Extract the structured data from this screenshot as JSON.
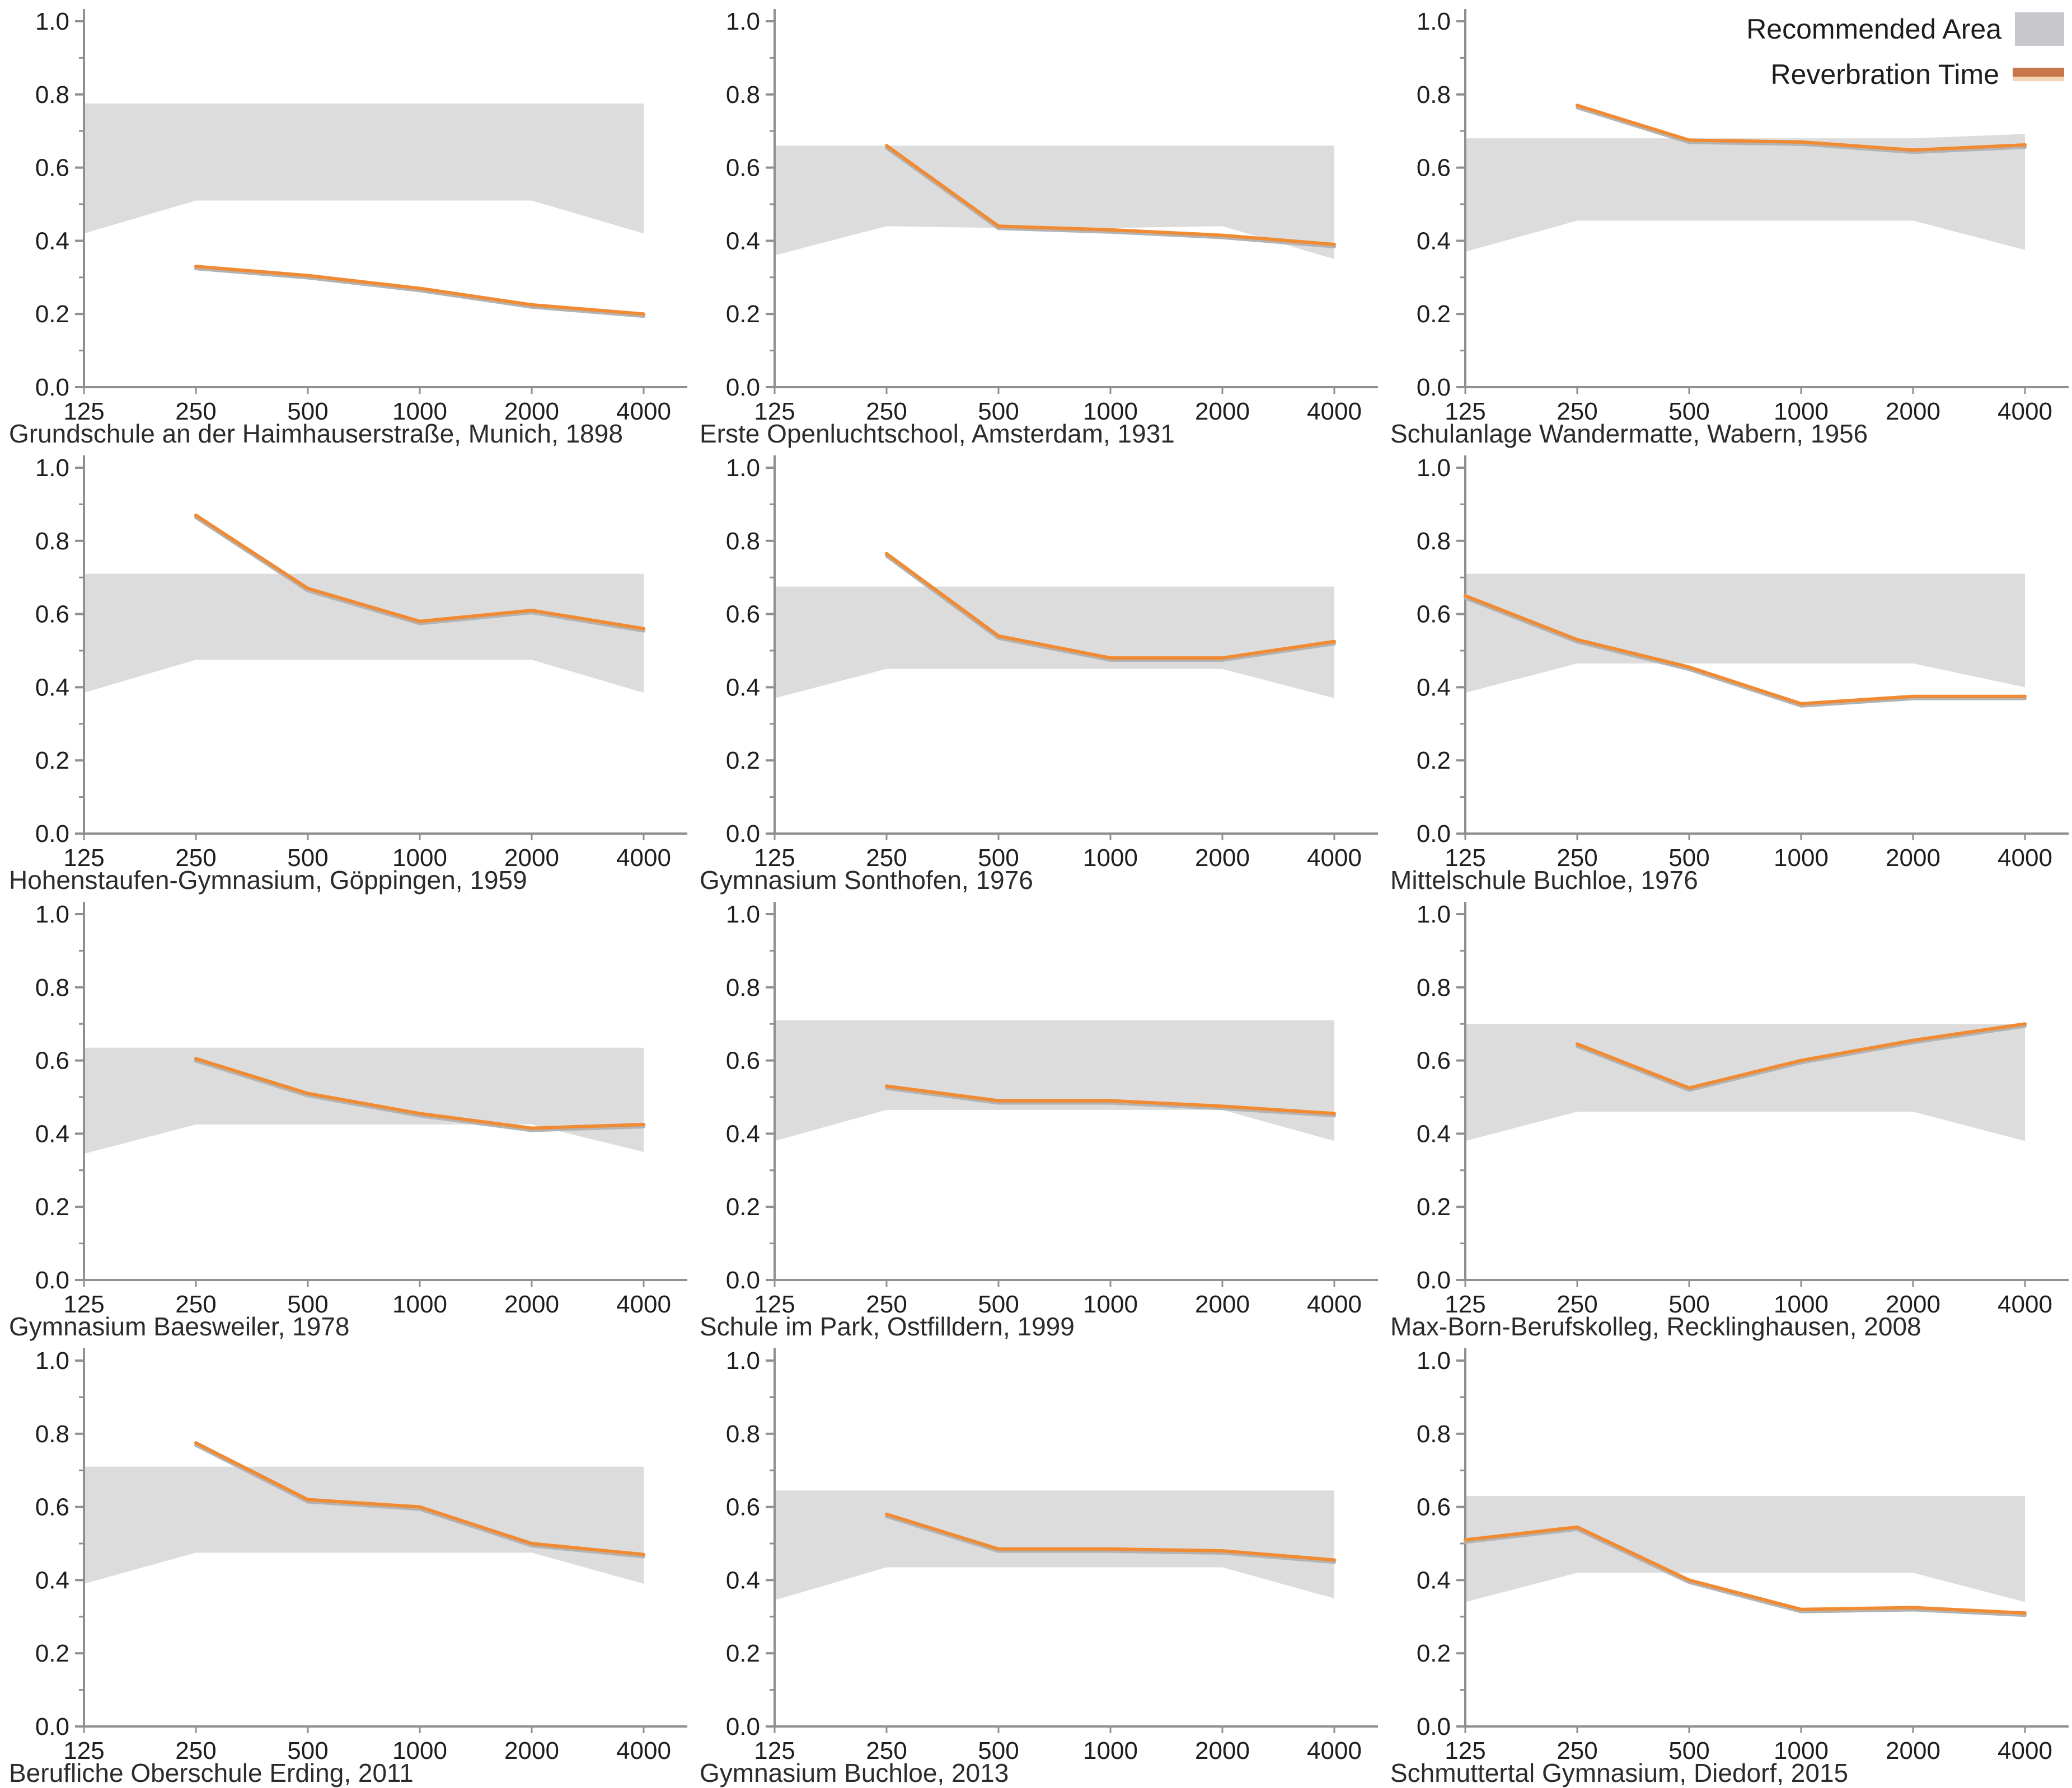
{
  "legend": {
    "recommended_area_label": "Recommended Area",
    "reverbration_time_label": "Reverbration Time"
  },
  "axes": {
    "ylim": [
      0.0,
      1.0
    ],
    "y_ticks": [
      0.0,
      0.2,
      0.4,
      0.6,
      0.8,
      1.0
    ],
    "y_minor_ticks": [
      0.1,
      0.3,
      0.5,
      0.7,
      0.9
    ],
    "x_ticks": [
      125,
      250,
      500,
      1000,
      2000,
      4000
    ],
    "x_tick_labels": [
      "125",
      "250",
      "500",
      "1000",
      "2000",
      "4000"
    ],
    "x_scale": "log2",
    "grid": "off"
  },
  "colors": {
    "band": "#dcdcdc",
    "line": "#f08a33",
    "line_shadow": "#b3b3b3",
    "legend_line": "#c8764a",
    "axis": "#8f8f8f",
    "tick_text": "#1e1e1e"
  },
  "chart_data": [
    {
      "type": "line",
      "title": "Grundschule an der Haimhauserstraße, Munich, 1898",
      "band": {
        "x": [
          125,
          250,
          500,
          1000,
          2000,
          4000
        ],
        "upper": [
          0.775,
          0.775,
          0.775,
          0.775,
          0.775,
          0.775
        ],
        "lower": [
          0.42,
          0.51,
          0.51,
          0.51,
          0.51,
          0.42
        ]
      },
      "line": {
        "x": [
          250,
          500,
          1000,
          2000,
          4000
        ],
        "y": [
          0.33,
          0.305,
          0.27,
          0.225,
          0.2
        ]
      }
    },
    {
      "type": "line",
      "title": "Erste Openluchtschool, Amsterdam, 1931",
      "band": {
        "x": [
          125,
          250,
          500,
          1000,
          2000,
          4000
        ],
        "upper": [
          0.66,
          0.66,
          0.66,
          0.66,
          0.66,
          0.66
        ],
        "lower": [
          0.36,
          0.44,
          0.435,
          0.435,
          0.44,
          0.35
        ]
      },
      "line": {
        "x": [
          250,
          500,
          1000,
          2000,
          4000
        ],
        "y": [
          0.66,
          0.44,
          0.43,
          0.415,
          0.39
        ]
      }
    },
    {
      "type": "line",
      "title": "Schulanlage Wandermatte, Wabern, 1956",
      "band": {
        "x": [
          125,
          250,
          500,
          1000,
          2000,
          4000
        ],
        "upper": [
          0.68,
          0.68,
          0.68,
          0.68,
          0.68,
          0.692
        ],
        "lower": [
          0.37,
          0.455,
          0.455,
          0.455,
          0.455,
          0.375
        ]
      },
      "line": {
        "x": [
          250,
          500,
          1000,
          2000,
          4000
        ],
        "y": [
          0.77,
          0.675,
          0.67,
          0.648,
          0.662
        ]
      }
    },
    {
      "type": "line",
      "title": "Hohenstaufen-Gymnasium, Göppingen, 1959",
      "band": {
        "x": [
          125,
          250,
          500,
          1000,
          2000,
          4000
        ],
        "upper": [
          0.71,
          0.71,
          0.71,
          0.71,
          0.71,
          0.71
        ],
        "lower": [
          0.385,
          0.475,
          0.475,
          0.475,
          0.475,
          0.385
        ]
      },
      "line": {
        "x": [
          250,
          500,
          1000,
          2000,
          4000
        ],
        "y": [
          0.87,
          0.67,
          0.58,
          0.61,
          0.56
        ]
      }
    },
    {
      "type": "line",
      "title": "Gymnasium Sonthofen, 1976",
      "band": {
        "x": [
          125,
          250,
          500,
          1000,
          2000,
          4000
        ],
        "upper": [
          0.675,
          0.675,
          0.675,
          0.675,
          0.675,
          0.675
        ],
        "lower": [
          0.37,
          0.45,
          0.45,
          0.45,
          0.45,
          0.37
        ]
      },
      "line": {
        "x": [
          250,
          500,
          1000,
          2000,
          4000
        ],
        "y": [
          0.765,
          0.54,
          0.48,
          0.48,
          0.525
        ]
      }
    },
    {
      "type": "line",
      "title": "Mittelschule Buchloe, 1976",
      "band": {
        "x": [
          125,
          250,
          500,
          1000,
          2000,
          4000
        ],
        "upper": [
          0.71,
          0.71,
          0.71,
          0.71,
          0.71,
          0.71
        ],
        "lower": [
          0.385,
          0.465,
          0.465,
          0.465,
          0.465,
          0.4
        ]
      },
      "line": {
        "x": [
          125,
          250,
          500,
          1000,
          2000,
          4000
        ],
        "y": [
          0.65,
          0.53,
          0.455,
          0.355,
          0.375,
          0.375
        ]
      }
    },
    {
      "type": "line",
      "title": "Gymnasium Baesweiler, 1978",
      "band": {
        "x": [
          125,
          250,
          500,
          1000,
          2000,
          4000
        ],
        "upper": [
          0.635,
          0.635,
          0.635,
          0.635,
          0.635,
          0.635
        ],
        "lower": [
          0.345,
          0.425,
          0.425,
          0.425,
          0.425,
          0.35
        ]
      },
      "line": {
        "x": [
          250,
          500,
          1000,
          2000,
          4000
        ],
        "y": [
          0.605,
          0.51,
          0.455,
          0.415,
          0.425
        ]
      }
    },
    {
      "type": "line",
      "title": "Schule im Park, Ostfilldern, 1999",
      "band": {
        "x": [
          125,
          250,
          500,
          1000,
          2000,
          4000
        ],
        "upper": [
          0.71,
          0.71,
          0.71,
          0.71,
          0.71,
          0.71
        ],
        "lower": [
          0.38,
          0.465,
          0.465,
          0.465,
          0.465,
          0.38
        ]
      },
      "line": {
        "x": [
          250,
          500,
          1000,
          2000,
          4000
        ],
        "y": [
          0.53,
          0.49,
          0.49,
          0.475,
          0.455
        ]
      }
    },
    {
      "type": "line",
      "title": "Max-Born-Berufskolleg, Recklinghausen, 2008",
      "band": {
        "x": [
          125,
          250,
          500,
          1000,
          2000,
          4000
        ],
        "upper": [
          0.7,
          0.7,
          0.7,
          0.7,
          0.7,
          0.7
        ],
        "lower": [
          0.38,
          0.46,
          0.46,
          0.46,
          0.46,
          0.38
        ]
      },
      "line": {
        "x": [
          250,
          500,
          1000,
          2000,
          4000
        ],
        "y": [
          0.645,
          0.525,
          0.6,
          0.655,
          0.7
        ]
      }
    },
    {
      "type": "line",
      "title": "Berufliche Oberschule Erding, 2011",
      "band": {
        "x": [
          125,
          250,
          500,
          1000,
          2000,
          4000
        ],
        "upper": [
          0.71,
          0.71,
          0.71,
          0.71,
          0.71,
          0.71
        ],
        "lower": [
          0.39,
          0.475,
          0.475,
          0.475,
          0.475,
          0.39
        ]
      },
      "line": {
        "x": [
          250,
          500,
          1000,
          2000,
          4000
        ],
        "y": [
          0.775,
          0.62,
          0.6,
          0.5,
          0.47
        ]
      }
    },
    {
      "type": "line",
      "title": "Gymnasium Buchloe, 2013",
      "band": {
        "x": [
          125,
          250,
          500,
          1000,
          2000,
          4000
        ],
        "upper": [
          0.645,
          0.645,
          0.645,
          0.645,
          0.645,
          0.645
        ],
        "lower": [
          0.345,
          0.435,
          0.435,
          0.435,
          0.435,
          0.35
        ]
      },
      "line": {
        "x": [
          250,
          500,
          1000,
          2000,
          4000
        ],
        "y": [
          0.58,
          0.485,
          0.485,
          0.48,
          0.455
        ]
      }
    },
    {
      "type": "line",
      "title": "Schmuttertal Gymnasium, Diedorf, 2015",
      "band": {
        "x": [
          125,
          250,
          500,
          1000,
          2000,
          4000
        ],
        "upper": [
          0.63,
          0.63,
          0.63,
          0.63,
          0.63,
          0.63
        ],
        "lower": [
          0.34,
          0.42,
          0.42,
          0.42,
          0.42,
          0.34
        ]
      },
      "line": {
        "x": [
          125,
          250,
          500,
          1000,
          2000,
          4000
        ],
        "y": [
          0.51,
          0.545,
          0.4,
          0.32,
          0.325,
          0.31
        ]
      }
    }
  ]
}
